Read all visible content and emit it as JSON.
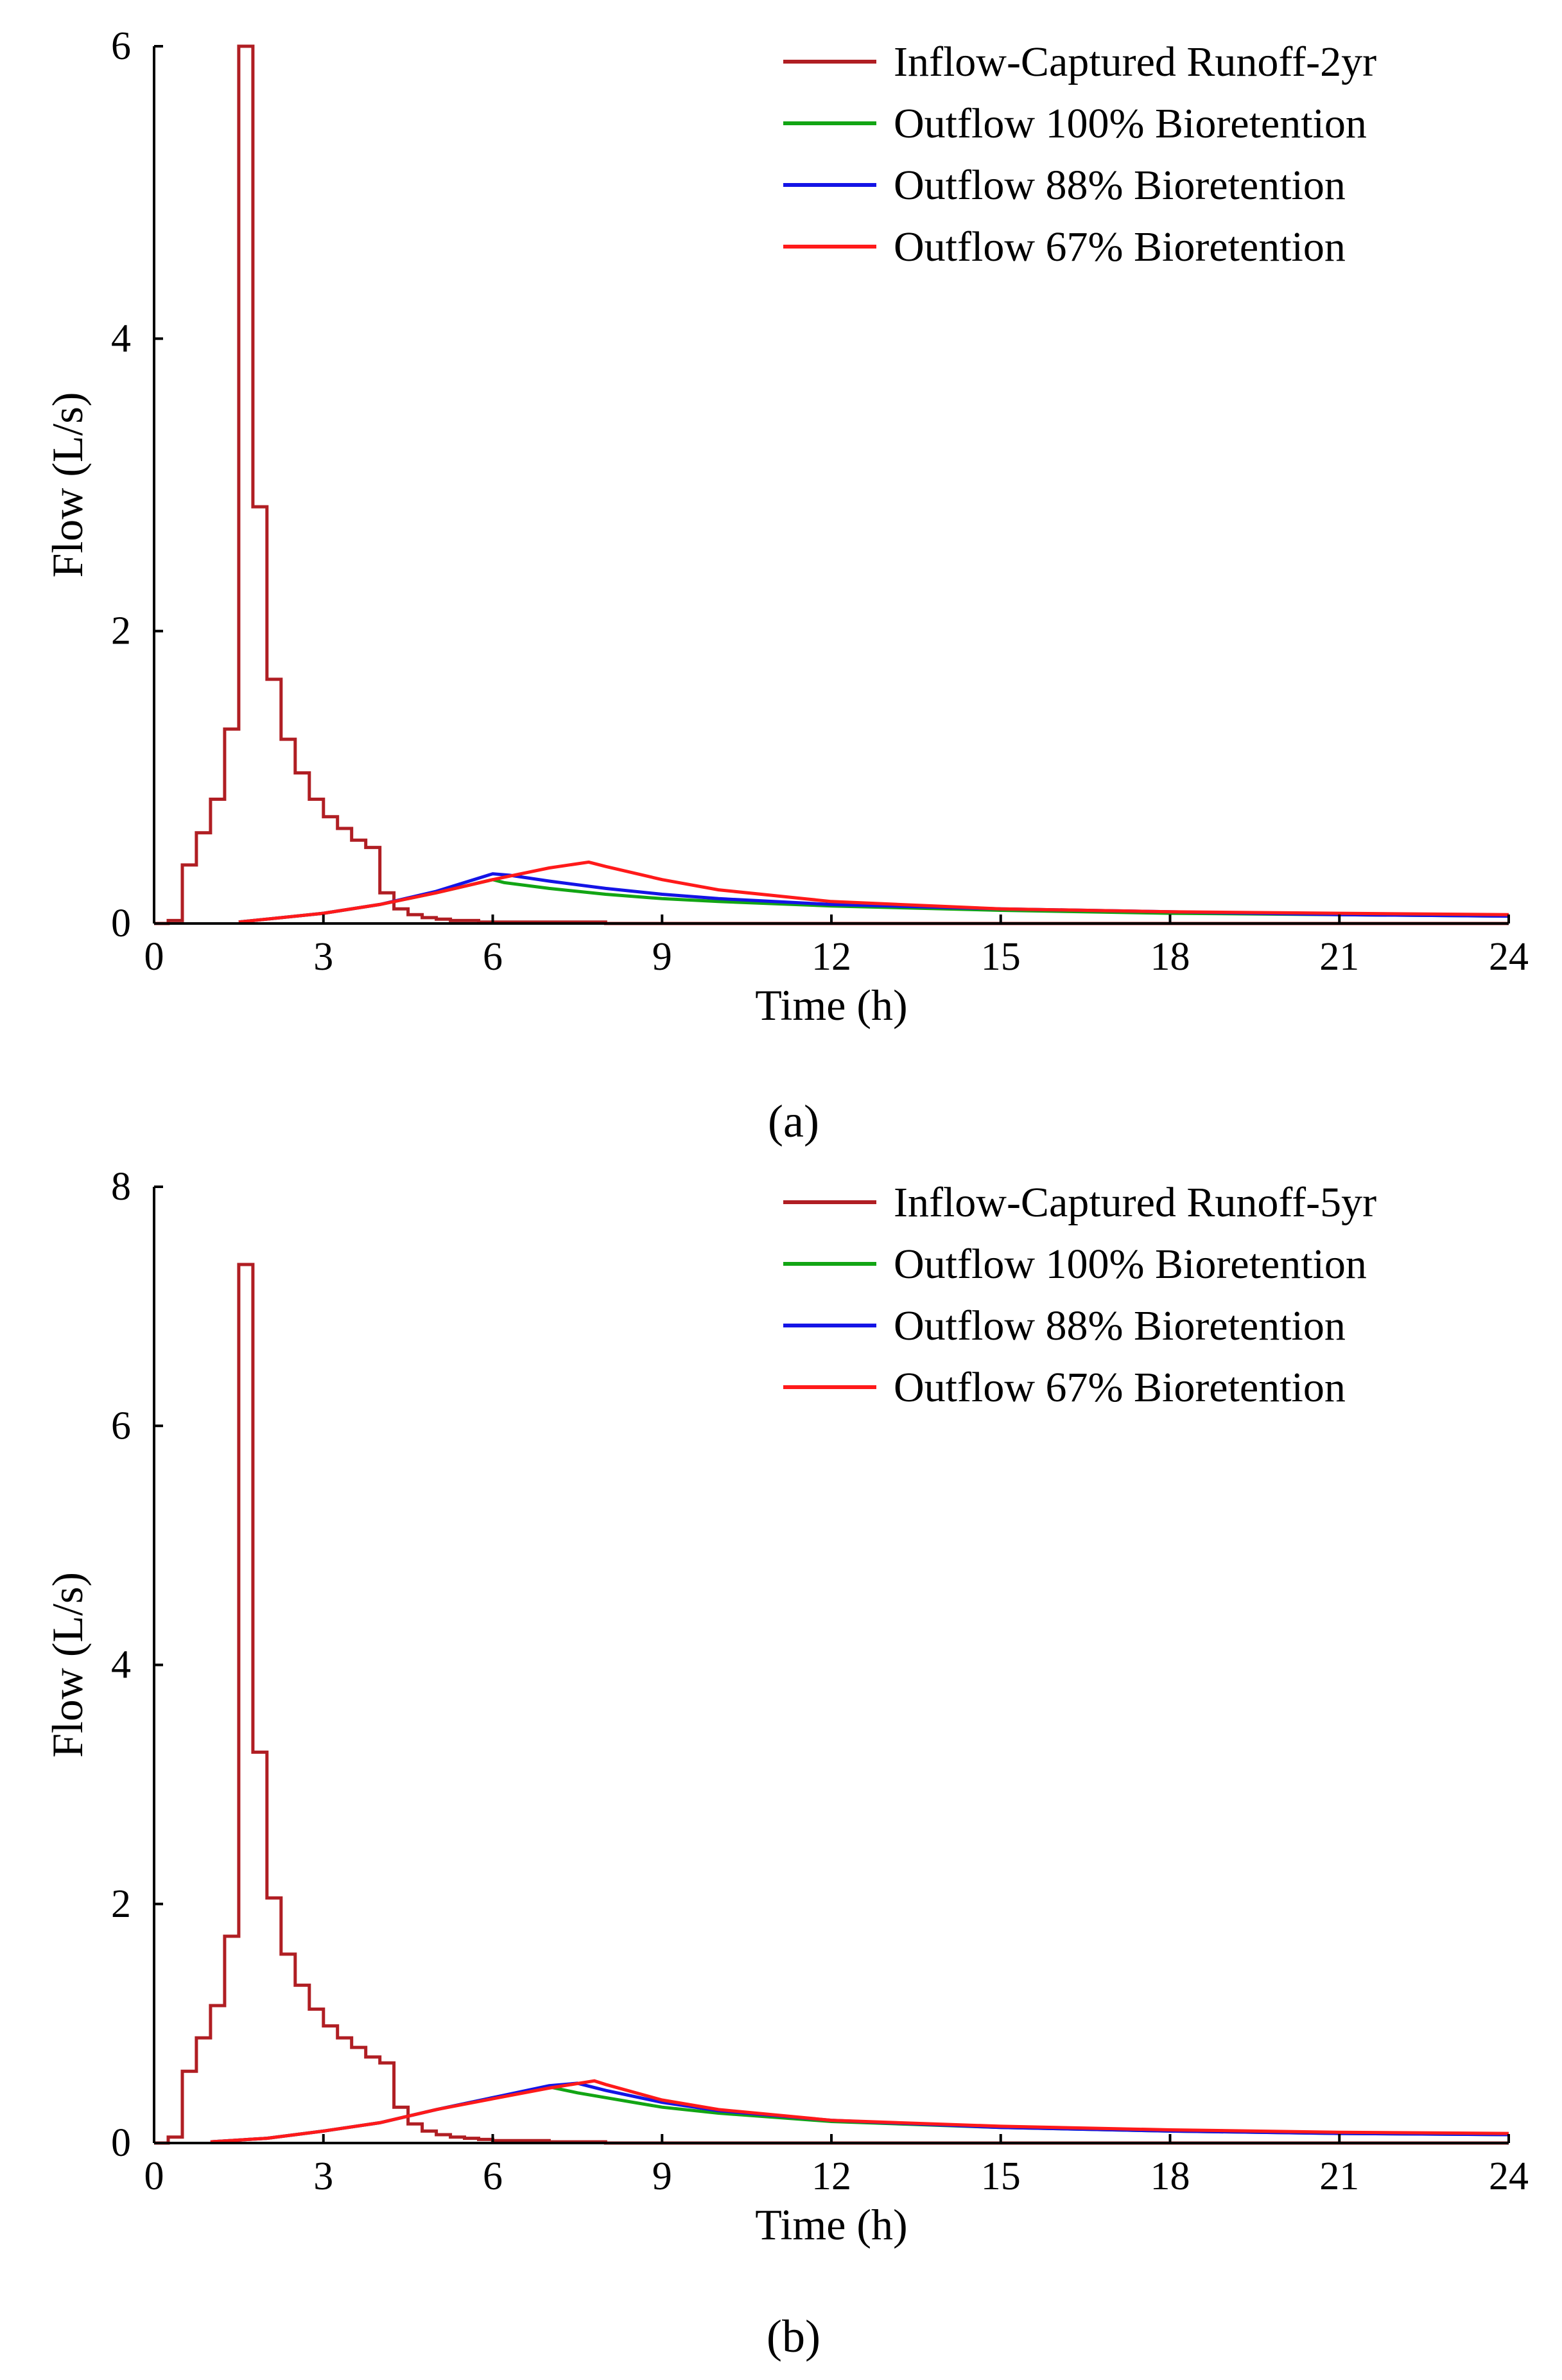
{
  "colors": {
    "inflow": "#b01e23",
    "outflow_100": "#12a514",
    "outflow_88": "#1414e6",
    "outflow_67": "#ff1a1a"
  },
  "chart_data": [
    {
      "type": "line",
      "caption": "(a)",
      "xlabel": "Time (h)",
      "ylabel": "Flow (L/s)",
      "xlim": [
        0,
        24
      ],
      "ylim": [
        0,
        6
      ],
      "xticks": [
        0,
        3,
        6,
        9,
        12,
        15,
        18,
        21,
        24
      ],
      "yticks": [
        0,
        2,
        4,
        6
      ],
      "legend_position": "top-right",
      "series": [
        {
          "name": "Inflow-Captured Runoff-2yr",
          "color_key": "inflow",
          "step": true,
          "x": [
            0,
            0.25,
            0.5,
            0.75,
            1.0,
            1.25,
            1.5,
            1.75,
            2.0,
            2.25,
            2.5,
            2.75,
            3.0,
            3.25,
            3.5,
            3.75,
            4.0,
            4.25,
            4.5,
            4.75,
            5.0,
            5.25,
            5.5,
            5.75,
            6.0,
            7.0,
            8.0,
            24
          ],
          "y": [
            0,
            0.02,
            0.4,
            0.62,
            0.85,
            1.33,
            6.0,
            2.85,
            1.67,
            1.26,
            1.03,
            0.85,
            0.73,
            0.65,
            0.57,
            0.52,
            0.21,
            0.1,
            0.06,
            0.04,
            0.03,
            0.02,
            0.02,
            0.01,
            0.01,
            0.01,
            0.0,
            0.0
          ]
        },
        {
          "name": "Outflow 100% Bioretention",
          "color_key": "outflow_100",
          "step": false,
          "x": [
            1.5,
            2,
            3,
            4,
            5,
            6,
            6.2,
            7,
            8,
            9,
            10,
            12,
            15,
            18,
            21,
            24
          ],
          "y": [
            0.01,
            0.03,
            0.07,
            0.13,
            0.21,
            0.3,
            0.28,
            0.24,
            0.2,
            0.17,
            0.15,
            0.12,
            0.09,
            0.07,
            0.06,
            0.05
          ]
        },
        {
          "name": "Outflow 88% Bioretention",
          "color_key": "outflow_88",
          "step": false,
          "x": [
            1.5,
            2,
            3,
            4,
            5,
            6,
            6.3,
            7,
            8,
            9,
            10,
            12,
            15,
            18,
            21,
            24
          ],
          "y": [
            0.01,
            0.03,
            0.07,
            0.13,
            0.22,
            0.34,
            0.33,
            0.29,
            0.24,
            0.2,
            0.17,
            0.13,
            0.1,
            0.08,
            0.06,
            0.05
          ]
        },
        {
          "name": "Outflow 67% Bioretention",
          "color_key": "outflow_67",
          "step": false,
          "x": [
            1.5,
            2,
            3,
            4,
            5,
            6,
            7,
            7.7,
            8,
            9,
            10,
            12,
            15,
            18,
            21,
            24
          ],
          "y": [
            0.01,
            0.03,
            0.07,
            0.13,
            0.21,
            0.3,
            0.38,
            0.42,
            0.39,
            0.3,
            0.23,
            0.15,
            0.1,
            0.08,
            0.07,
            0.06
          ]
        }
      ]
    },
    {
      "type": "line",
      "caption": "(b)",
      "xlabel": "Time (h)",
      "ylabel": "Flow (L/s)",
      "xlim": [
        0,
        24
      ],
      "ylim": [
        0,
        8
      ],
      "xticks": [
        0,
        3,
        6,
        9,
        12,
        15,
        18,
        21,
        24
      ],
      "yticks": [
        0,
        2,
        4,
        6,
        8
      ],
      "legend_position": "top-right",
      "series": [
        {
          "name": "Inflow-Captured Runoff-5yr",
          "color_key": "inflow",
          "step": true,
          "x": [
            0,
            0.25,
            0.5,
            0.75,
            1.0,
            1.25,
            1.5,
            1.75,
            2.0,
            2.25,
            2.5,
            2.75,
            3.0,
            3.25,
            3.5,
            3.75,
            4.0,
            4.25,
            4.5,
            4.75,
            5.0,
            5.25,
            5.5,
            5.75,
            6.0,
            7.0,
            8.0,
            24
          ],
          "y": [
            0,
            0.05,
            0.6,
            0.88,
            1.15,
            1.73,
            7.35,
            3.27,
            2.05,
            1.58,
            1.32,
            1.12,
            0.98,
            0.88,
            0.8,
            0.72,
            0.67,
            0.3,
            0.16,
            0.1,
            0.07,
            0.05,
            0.04,
            0.03,
            0.02,
            0.01,
            0.0,
            0.0
          ]
        },
        {
          "name": "Outflow 100% Bioretention",
          "color_key": "outflow_100",
          "step": false,
          "x": [
            1.0,
            2,
            3,
            4,
            5,
            6,
            7,
            7.5,
            8,
            9,
            10,
            12,
            15,
            18,
            21,
            24
          ],
          "y": [
            0.01,
            0.04,
            0.1,
            0.17,
            0.28,
            0.38,
            0.47,
            0.42,
            0.38,
            0.3,
            0.25,
            0.18,
            0.13,
            0.1,
            0.08,
            0.07
          ]
        },
        {
          "name": "Outflow 88% Bioretention",
          "color_key": "outflow_88",
          "step": false,
          "x": [
            1.0,
            2,
            3,
            4,
            5,
            6,
            7,
            7.5,
            8,
            9,
            10,
            12,
            15,
            18,
            21,
            24
          ],
          "y": [
            0.01,
            0.04,
            0.1,
            0.17,
            0.28,
            0.38,
            0.48,
            0.5,
            0.44,
            0.34,
            0.27,
            0.19,
            0.13,
            0.1,
            0.08,
            0.07
          ]
        },
        {
          "name": "Outflow 67% Bioretention",
          "color_key": "outflow_67",
          "step": false,
          "x": [
            1.0,
            2,
            3,
            4,
            5,
            6,
            7,
            7.8,
            8,
            9,
            10,
            12,
            15,
            18,
            21,
            24
          ],
          "y": [
            0.01,
            0.04,
            0.1,
            0.17,
            0.28,
            0.37,
            0.46,
            0.52,
            0.49,
            0.36,
            0.28,
            0.19,
            0.14,
            0.11,
            0.09,
            0.08
          ]
        }
      ]
    }
  ]
}
